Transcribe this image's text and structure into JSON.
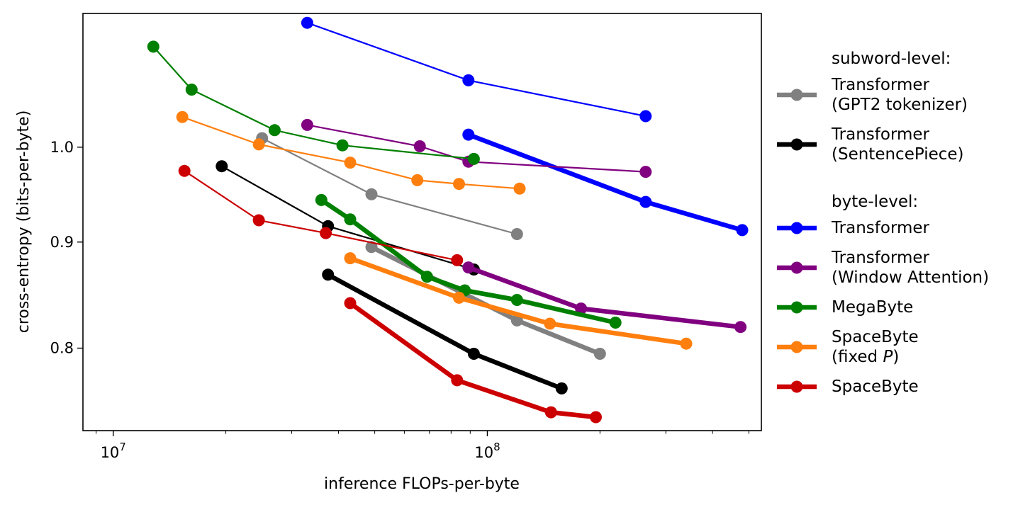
{
  "chart_data": {
    "type": "line",
    "title": "",
    "xlabel": "inference FLOPs-per-byte",
    "ylabel": "cross-entropy (bits-per-byte)",
    "x_scale": "log",
    "y_scale": "log",
    "xlim": [
      8300000,
      540000000
    ],
    "ylim": [
      0.73,
      1.16
    ],
    "x_major_ticks": [
      {
        "value": 10000000,
        "base": "10",
        "exp": "7"
      },
      {
        "value": 100000000,
        "base": "10",
        "exp": "8"
      }
    ],
    "y_ticks": [
      {
        "value": 0.8,
        "label": "0.8"
      },
      {
        "value": 0.9,
        "label": "0.9"
      },
      {
        "value": 1.0,
        "label": "1.0"
      }
    ],
    "grid": false,
    "legend": {
      "placement": "outside-right",
      "groups": [
        {
          "header": "subword-level:",
          "entries": [
            0,
            1
          ]
        },
        {
          "header": "byte-level:",
          "entries": [
            2,
            3,
            4,
            5,
            6
          ]
        }
      ],
      "entries": [
        {
          "lines": [
            "Transformer",
            "(GPT2 tokenizer)"
          ],
          "color": "#808080"
        },
        {
          "lines": [
            "Transformer",
            "(SentencePiece)"
          ],
          "color": "#000000"
        },
        {
          "lines": [
            "Transformer"
          ],
          "color": "#0000ff"
        },
        {
          "lines": [
            "Transformer",
            "(Window Attention)"
          ],
          "color": "#800080"
        },
        {
          "lines": [
            "MegaByte"
          ],
          "color": "#008000"
        },
        {
          "lines": [
            "SpaceByte",
            "(fixed |P|)"
          ],
          "color": "#ff7f0e"
        },
        {
          "lines": [
            "SpaceByte"
          ],
          "color": "#cc0000"
        }
      ]
    },
    "series": [
      {
        "name": "Transformer (GPT2 tokenizer)",
        "color": "#808080",
        "width": "thin",
        "x": [
          25000000,
          49000000,
          120000000
        ],
        "y": [
          1.01,
          0.949,
          0.908
        ]
      },
      {
        "name": "Transformer (GPT2 tokenizer)",
        "color": "#808080",
        "width": "thick",
        "x": [
          49000000,
          120000000,
          200000000
        ],
        "y": [
          0.895,
          0.825,
          0.795
        ]
      },
      {
        "name": "Transformer (SentencePiece)",
        "color": "#000000",
        "width": "thin",
        "x": [
          19500000,
          37500000,
          92000000
        ],
        "y": [
          0.979,
          0.916,
          0.873
        ]
      },
      {
        "name": "Transformer (SentencePiece)",
        "color": "#000000",
        "width": "thick",
        "x": [
          37500000,
          92000000,
          158000000
        ],
        "y": [
          0.868,
          0.795,
          0.765
        ]
      },
      {
        "name": "Transformer",
        "color": "#0000ff",
        "width": "thin",
        "x": [
          33000000,
          89000000,
          265000000
        ],
        "y": [
          1.148,
          1.077,
          1.035
        ]
      },
      {
        "name": "Transformer",
        "color": "#0000ff",
        "width": "thick",
        "x": [
          89000000,
          265000000,
          480000000
        ],
        "y": [
          1.014,
          0.941,
          0.912
        ]
      },
      {
        "name": "Transformer (Window Attention)",
        "color": "#800080",
        "width": "thin",
        "x": [
          33000000,
          66000000,
          89000000,
          265000000
        ],
        "y": [
          1.025,
          1.001,
          0.984,
          0.973
        ]
      },
      {
        "name": "Transformer (Window Attention)",
        "color": "#800080",
        "width": "thick",
        "x": [
          89000000,
          178000000,
          475000000
        ],
        "y": [
          0.875,
          0.836,
          0.819
        ]
      },
      {
        "name": "MegaByte",
        "color": "#008000",
        "width": "thin",
        "x": [
          12800000,
          16200000,
          27000000,
          41000000,
          92000000
        ],
        "y": [
          1.118,
          1.066,
          1.019,
          1.002,
          0.987
        ]
      },
      {
        "name": "MegaByte",
        "color": "#008000",
        "width": "thick",
        "x": [
          36000000,
          43000000,
          69000000,
          87000000,
          120000000,
          220000000
        ],
        "y": [
          0.943,
          0.923,
          0.866,
          0.853,
          0.844,
          0.823
        ]
      },
      {
        "name": "SpaceByte (fixed P)",
        "color": "#ff7f0e",
        "width": "thin",
        "x": [
          15300000,
          24500000,
          43000000,
          65000000,
          84000000,
          122000000
        ],
        "y": [
          1.034,
          1.003,
          0.983,
          0.964,
          0.96,
          0.955
        ]
      },
      {
        "name": "SpaceByte (fixed P)",
        "color": "#ff7f0e",
        "width": "thick",
        "x": [
          43000000,
          84000000,
          147000000,
          340000000
        ],
        "y": [
          0.884,
          0.846,
          0.822,
          0.804
        ]
      },
      {
        "name": "SpaceByte",
        "color": "#cc0000",
        "width": "thin",
        "x": [
          15500000,
          24500000,
          37000000,
          83000000
        ],
        "y": [
          0.974,
          0.922,
          0.909,
          0.882
        ]
      },
      {
        "name": "SpaceByte",
        "color": "#cc0000",
        "width": "thick",
        "x": [
          43000000,
          83000000,
          148000000,
          195000000
        ],
        "y": [
          0.841,
          0.772,
          0.745,
          0.741
        ]
      }
    ]
  }
}
